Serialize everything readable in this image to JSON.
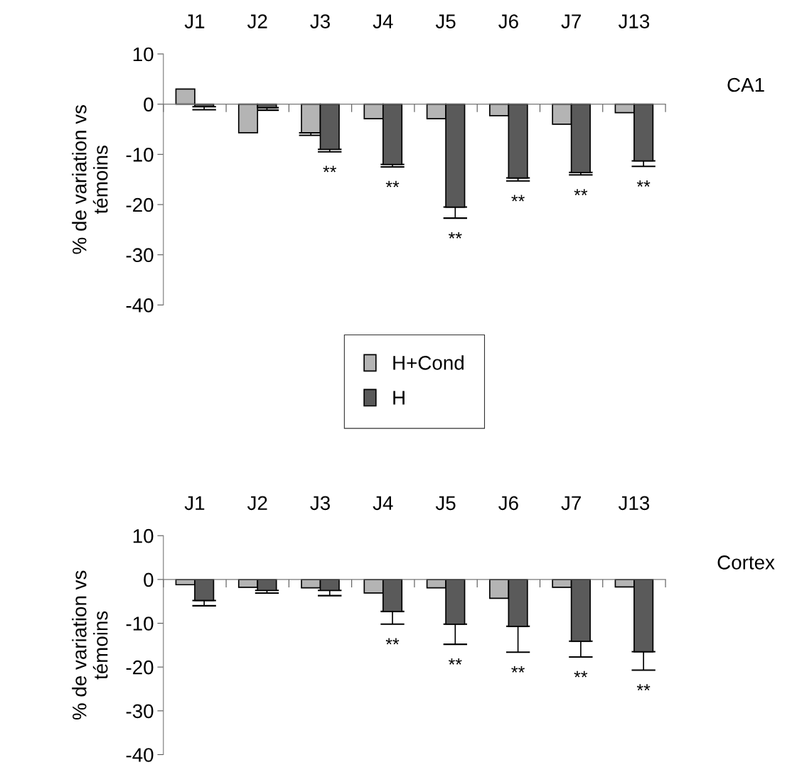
{
  "chart_data": [
    {
      "type": "bar",
      "categories": [
        "J1",
        "J2",
        "J3",
        "J4",
        "J5",
        "J6",
        "J7",
        "J13"
      ],
      "ylabel": "% de variation vs\ntémoins",
      "ylim": [
        -40,
        10
      ],
      "yticks": [
        10,
        0,
        -10,
        -20,
        -30,
        -40
      ],
      "legend": "bottom",
      "series": [
        {
          "name": "H+Cond",
          "color": "#b4b4b4",
          "values": [
            3.0,
            -5.7,
            -5.7,
            -2.9,
            -2.9,
            -2.3,
            -4.0,
            -1.7
          ],
          "errors": [
            null,
            null,
            0.5,
            null,
            null,
            null,
            null,
            null
          ]
        },
        {
          "name": "H",
          "color": "#5a5a5a",
          "values": [
            -0.5,
            -0.7,
            -9.0,
            -12.0,
            -20.5,
            -14.7,
            -13.6,
            -11.3
          ],
          "errors": [
            0.6,
            0.5,
            0.5,
            0.5,
            2.2,
            0.6,
            0.5,
            1.1
          ]
        }
      ],
      "annotations": [
        "CA1",
        {
          "text": "**",
          "x": "J3",
          "y": -9.0
        },
        {
          "text": "**",
          "x": "J4",
          "y": -12.0
        },
        {
          "text": "**",
          "x": "J5",
          "y": -20.5
        },
        {
          "text": "**",
          "x": "J6",
          "y": -14.7
        },
        {
          "text": "**",
          "x": "J7",
          "y": -13.6
        },
        {
          "text": "**",
          "x": "J13",
          "y": -11.3
        }
      ]
    },
    {
      "type": "bar",
      "categories": [
        "J1",
        "J2",
        "J3",
        "J4",
        "J5",
        "J6",
        "J7",
        "J13"
      ],
      "ylabel": "% de variation vs\ntémoins",
      "ylim": [
        -40,
        10
      ],
      "yticks": [
        10,
        0,
        -10,
        -20,
        -30,
        -40
      ],
      "series": [
        {
          "color": "#b4b4b4",
          "values": [
            -1.2,
            -1.8,
            -1.9,
            -3.1,
            -1.9,
            -4.3,
            -1.8,
            -1.7
          ]
        },
        {
          "color": "#5a5a5a",
          "values": [
            -4.8,
            -2.5,
            -2.5,
            -7.3,
            -10.2,
            -10.7,
            -14.1,
            -16.5
          ],
          "errors": [
            1.2,
            0.6,
            1.2,
            2.9,
            4.6,
            5.9,
            3.6,
            4.2
          ]
        }
      ],
      "annotations": [
        "Cortex",
        {
          "text": "**",
          "x": "J4",
          "y": -7.3
        },
        {
          "text": "**",
          "x": "J5",
          "y": -10.2
        },
        {
          "text": "**",
          "x": "J6",
          "y": -10.7
        },
        {
          "text": "**",
          "x": "J7",
          "y": -14.1
        },
        {
          "text": "**",
          "x": "J13",
          "y": -16.5
        }
      ]
    }
  ]
}
